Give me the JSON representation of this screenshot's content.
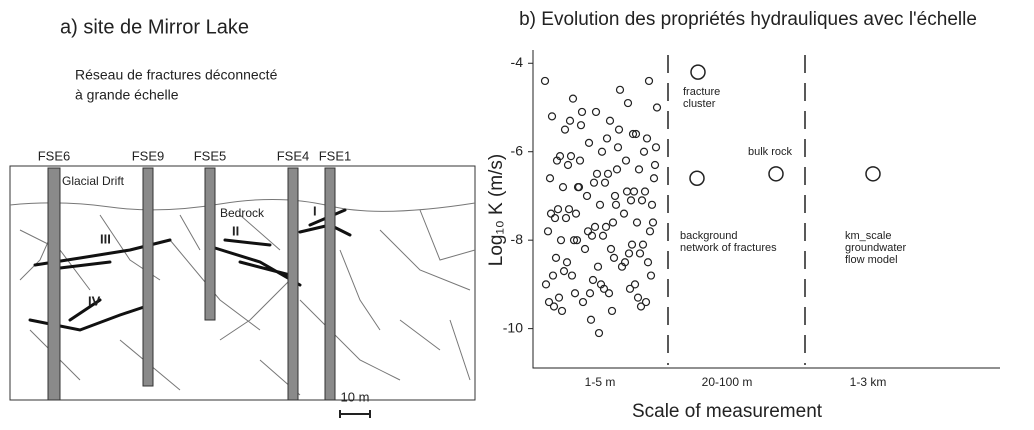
{
  "panel_a": {
    "title": "a) site de Mirror Lake",
    "subtitle": [
      "Réseau de fractures déconnecté",
      "à grande échelle"
    ],
    "wells": [
      "FSE6",
      "FSE9",
      "FSE5",
      "FSE4",
      "FSE1"
    ],
    "layers": [
      "Glacial Drift",
      "Bedrock"
    ],
    "zones": [
      "I",
      "II",
      "III",
      "IV"
    ],
    "scale": "10 m"
  },
  "chart_data": {
    "type": "scatter",
    "title": "b) Evolution des propriétés hydrauliques avec l'échelle",
    "y_label": "Log₁₀ K (m/s)",
    "x_label": "Scale of measurement",
    "categories": [
      "1-5 m",
      "20-100 m",
      "1-3 km"
    ],
    "ylim": [
      -10.8,
      -3.7
    ],
    "yticks": [
      -4,
      -6,
      -8,
      -10
    ],
    "series": [
      {
        "color": "#222",
        "values": [
          -4.4,
          -5.1,
          -5.5,
          -5.9,
          -6.2,
          -6.4,
          -6.6,
          -6.8,
          -7.0,
          -7.2,
          -7.4,
          -7.6,
          -7.8,
          -8.0,
          -8.2,
          -8.5,
          -8.8,
          -9.2,
          -9.4,
          -5.3,
          -5.7,
          -6.0,
          -6.3,
          -6.7,
          -7.1,
          -7.5,
          -7.9,
          -8.3,
          -8.7,
          -9.0,
          -9.3,
          -9.6,
          -10.1,
          -5.6,
          -6.1,
          -6.5,
          -6.9,
          -7.3,
          -7.7,
          -8.1,
          -8.4,
          -8.9,
          -9.1,
          -9.5,
          -9.8,
          -4.9,
          -5.2,
          -5.8,
          -6.2,
          -6.6,
          -7.0,
          -7.4,
          -7.8,
          -8.2,
          -8.6,
          -9.0,
          -9.4,
          -4.6,
          -5.0,
          -5.4,
          -5.9,
          -6.3,
          -6.8,
          -7.2,
          -7.6,
          -8.0,
          -8.4,
          -8.8,
          -9.2,
          -9.6,
          -4.4,
          -4.8,
          -5.3,
          -5.7,
          -6.1,
          -6.5,
          -6.9,
          -7.3,
          -7.7,
          -8.1,
          -8.5,
          -9.1,
          -9.5,
          -5.5,
          -6.0,
          -6.4,
          -6.8,
          -7.2,
          -7.6,
          -8.0,
          -8.6,
          -9.0,
          -9.3,
          -5.1,
          -5.6,
          -6.2,
          -6.7,
          -7.1,
          -7.5,
          -7.9,
          -8.3,
          -8.8,
          -9.2,
          -6.9,
          -7.4,
          -7.8,
          -8.5,
          -9.4
        ]
      }
    ],
    "annotations": [
      {
        "label": [
          "fracture",
          "cluster"
        ],
        "value": -4.2
      },
      {
        "label": [
          "background",
          "network of fractures"
        ],
        "value": -6.6
      },
      {
        "label": [
          "bulk rock"
        ],
        "value": -6.5
      },
      {
        "label": [
          "km_scale",
          "groundwater",
          "flow model"
        ],
        "value": -6.5
      }
    ]
  }
}
